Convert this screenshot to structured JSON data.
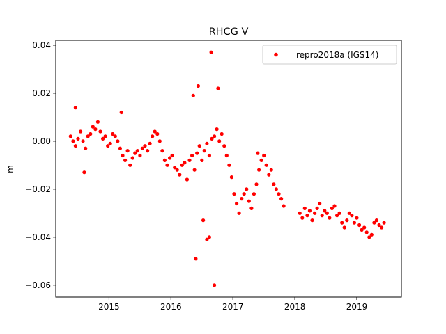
{
  "chart_data": {
    "type": "scatter",
    "title": "RHCG V",
    "xlabel": "",
    "ylabel": "m",
    "xlim": [
      2014.14,
      2019.72
    ],
    "ylim": [
      -0.065,
      0.042
    ],
    "x_ticks": [
      2015,
      2016,
      2017,
      2018,
      2019
    ],
    "x_tick_labels": [
      "2015",
      "2016",
      "2017",
      "2018",
      "2019"
    ],
    "y_ticks": [
      -0.06,
      -0.04,
      -0.02,
      0.0,
      0.02,
      0.04
    ],
    "y_tick_labels": [
      "−0.06",
      "−0.04",
      "−0.02",
      "0.00",
      "0.02",
      "0.04"
    ],
    "grid": false,
    "legend_position": "top-right",
    "series": [
      {
        "name": "repro2018a (IGS14)",
        "color": "#ff0000",
        "marker": "circle",
        "x": [
          2014.38,
          2014.42,
          2014.46,
          2014.5,
          2014.54,
          2014.58,
          2014.62,
          2014.66,
          2014.7,
          2014.74,
          2014.78,
          2014.82,
          2014.86,
          2014.9,
          2014.94,
          2014.98,
          2015.02,
          2015.06,
          2015.1,
          2015.14,
          2015.18,
          2015.22,
          2015.26,
          2015.3,
          2015.34,
          2015.38,
          2015.42,
          2015.46,
          2015.5,
          2015.54,
          2015.58,
          2015.62,
          2015.66,
          2015.7,
          2015.74,
          2015.78,
          2015.82,
          2015.86,
          2015.9,
          2015.94,
          2015.98,
          2016.02,
          2016.06,
          2016.1,
          2016.14,
          2016.18,
          2016.22,
          2016.26,
          2016.3,
          2016.34,
          2016.38,
          2016.42,
          2016.46,
          2016.5,
          2016.54,
          2016.58,
          2016.62,
          2016.66,
          2016.7,
          2016.74,
          2016.78,
          2016.82,
          2016.86,
          2016.9,
          2016.94,
          2016.98,
          2017.02,
          2017.06,
          2017.1,
          2017.14,
          2017.18,
          2017.22,
          2017.26,
          2017.3,
          2017.34,
          2017.38,
          2017.42,
          2017.46,
          2017.5,
          2017.54,
          2017.58,
          2017.62,
          2017.66,
          2017.7,
          2017.74,
          2017.78,
          2017.82,
          2018.08,
          2018.12,
          2018.16,
          2018.2,
          2018.24,
          2018.28,
          2018.32,
          2018.36,
          2018.4,
          2018.44,
          2018.48,
          2018.52,
          2018.56,
          2018.6,
          2018.64,
          2018.68,
          2018.72,
          2018.76,
          2018.8,
          2018.84,
          2018.88,
          2018.92,
          2018.96,
          2019.0,
          2019.04,
          2019.08,
          2019.12,
          2019.16,
          2019.2,
          2019.24,
          2019.28,
          2019.32,
          2019.36,
          2019.4,
          2019.44,
          2016.4,
          2016.58,
          2016.65,
          2016.44,
          2016.76,
          2016.52,
          2016.62,
          2016.36,
          2016.7,
          2014.46,
          2014.6,
          2015.2,
          2017.4
        ],
        "y": [
          0.002,
          0.0,
          -0.002,
          0.001,
          0.004,
          0.0,
          -0.003,
          0.002,
          0.003,
          0.006,
          0.005,
          0.008,
          0.004,
          0.001,
          0.002,
          -0.002,
          -0.001,
          0.003,
          0.002,
          0.0,
          -0.003,
          -0.006,
          -0.008,
          -0.004,
          -0.01,
          -0.007,
          -0.005,
          -0.004,
          -0.006,
          -0.003,
          -0.002,
          -0.004,
          -0.001,
          0.002,
          0.004,
          0.003,
          0.0,
          -0.004,
          -0.008,
          -0.01,
          -0.007,
          -0.006,
          -0.011,
          -0.012,
          -0.014,
          -0.01,
          -0.009,
          -0.016,
          -0.008,
          -0.006,
          -0.012,
          -0.005,
          -0.002,
          -0.008,
          -0.004,
          -0.001,
          -0.006,
          0.001,
          0.002,
          0.005,
          0.0,
          0.003,
          -0.002,
          -0.006,
          -0.01,
          -0.015,
          -0.022,
          -0.026,
          -0.03,
          -0.024,
          -0.022,
          -0.02,
          -0.025,
          -0.028,
          -0.022,
          -0.018,
          -0.012,
          -0.008,
          -0.006,
          -0.01,
          -0.014,
          -0.012,
          -0.018,
          -0.02,
          -0.022,
          -0.024,
          -0.027,
          -0.03,
          -0.032,
          -0.028,
          -0.031,
          -0.029,
          -0.033,
          -0.03,
          -0.028,
          -0.026,
          -0.031,
          -0.029,
          -0.03,
          -0.032,
          -0.028,
          -0.027,
          -0.031,
          -0.03,
          -0.034,
          -0.036,
          -0.033,
          -0.03,
          -0.031,
          -0.034,
          -0.032,
          -0.035,
          -0.037,
          -0.036,
          -0.038,
          -0.04,
          -0.039,
          -0.034,
          -0.033,
          -0.035,
          -0.036,
          -0.034,
          -0.049,
          -0.041,
          0.037,
          0.023,
          0.022,
          -0.033,
          -0.04,
          0.019,
          -0.06,
          0.014,
          -0.013,
          0.012,
          -0.005
        ]
      }
    ]
  }
}
